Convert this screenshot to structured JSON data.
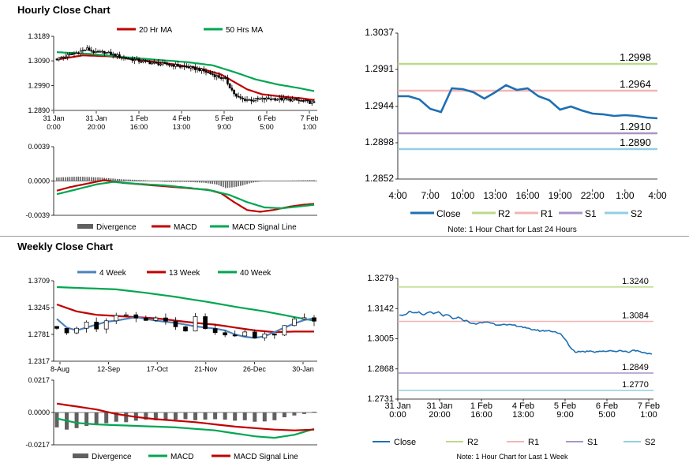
{
  "sections": {
    "hourly_title": "Hourly Close Chart",
    "weekly_title": "Weekly Close Chart"
  },
  "colors": {
    "close": "#1f6fb2",
    "r2": "#bcd98a",
    "r1": "#f2b4b4",
    "s1": "#a994c8",
    "s2": "#92cfe0",
    "ma_short": "#c00000",
    "ma_long": "#00a651",
    "ma_4wk": "#4f81bd",
    "divergence": "#606060",
    "candle": "#000000"
  },
  "chart_data": [
    {
      "id": "hourly_price",
      "type": "candlestick",
      "ylim": [
        1.289,
        1.3189
      ],
      "y_ticks": [
        "1.3189",
        "1.3090",
        "1.2990",
        "1.2890"
      ],
      "y_tick_values": [
        1.3189,
        1.309,
        1.299,
        1.289
      ],
      "x_ticks": [
        [
          "31 Jan",
          "0:00"
        ],
        [
          "31 Jan",
          "20:00"
        ],
        [
          "1 Feb",
          "16:00"
        ],
        [
          "4 Feb",
          "13:00"
        ],
        [
          "5 Feb",
          "9:00"
        ],
        [
          "6 Feb",
          "5:00"
        ],
        [
          "7 Feb",
          "1:00"
        ]
      ],
      "legend": [
        "20 Hr MA",
        "50 Hrs MA"
      ],
      "n": 120,
      "close": [
        [
          0,
          1.3098
        ],
        [
          10,
          1.3125
        ],
        [
          14,
          1.3138
        ],
        [
          18,
          1.3122
        ],
        [
          22,
          1.3125
        ],
        [
          30,
          1.3105
        ],
        [
          38,
          1.309
        ],
        [
          45,
          1.308
        ],
        [
          52,
          1.3075
        ],
        [
          60,
          1.3065
        ],
        [
          66,
          1.3055
        ],
        [
          72,
          1.3035
        ],
        [
          78,
          1.3015
        ],
        [
          80,
          1.2985
        ],
        [
          83,
          1.2945
        ],
        [
          86,
          1.2935
        ],
        [
          90,
          1.2932
        ],
        [
          95,
          1.2936
        ],
        [
          100,
          1.2937
        ],
        [
          105,
          1.2935
        ],
        [
          110,
          1.2932
        ],
        [
          115,
          1.2926
        ],
        [
          119,
          1.292
        ]
      ],
      "ma20": [
        [
          0,
          1.3095
        ],
        [
          12,
          1.3112
        ],
        [
          25,
          1.3108
        ],
        [
          40,
          1.3092
        ],
        [
          55,
          1.3075
        ],
        [
          68,
          1.3055
        ],
        [
          76,
          1.3035
        ],
        [
          82,
          1.3005
        ],
        [
          88,
          1.2975
        ],
        [
          95,
          1.2955
        ],
        [
          105,
          1.2945
        ],
        [
          112,
          1.294
        ],
        [
          119,
          1.2932
        ]
      ],
      "ma50": [
        [
          0,
          1.3125
        ],
        [
          15,
          1.3118
        ],
        [
          30,
          1.3106
        ],
        [
          45,
          1.3095
        ],
        [
          60,
          1.3085
        ],
        [
          72,
          1.3072
        ],
        [
          82,
          1.3045
        ],
        [
          92,
          1.3015
        ],
        [
          102,
          1.2995
        ],
        [
          112,
          1.298
        ],
        [
          119,
          1.2968
        ]
      ]
    },
    {
      "id": "hourly_macd",
      "type": "macd",
      "ylim": [
        -0.0039,
        0.0039
      ],
      "y_ticks": [
        "0.0039",
        "0.0000",
        "-0.0039"
      ],
      "y_tick_values": [
        0.0039,
        0.0,
        -0.0039
      ],
      "legend": [
        "Divergence",
        "MACD",
        "MACD Signal Line"
      ],
      "n": 120,
      "macd": [
        [
          0,
          -0.0011
        ],
        [
          6,
          -0.0007
        ],
        [
          12,
          -0.0004
        ],
        [
          18,
          -0.0001
        ],
        [
          22,
          0.0001
        ],
        [
          30,
          -0.0002
        ],
        [
          40,
          -0.0004
        ],
        [
          50,
          -0.0006
        ],
        [
          60,
          -0.0008
        ],
        [
          70,
          -0.001
        ],
        [
          76,
          -0.0014
        ],
        [
          82,
          -0.0024
        ],
        [
          88,
          -0.0033
        ],
        [
          94,
          -0.0035
        ],
        [
          100,
          -0.0033
        ],
        [
          108,
          -0.0029
        ],
        [
          114,
          -0.0027
        ],
        [
          119,
          -0.0026
        ]
      ],
      "signal": [
        [
          0,
          -0.0015
        ],
        [
          10,
          -0.0009
        ],
        [
          18,
          -0.0004
        ],
        [
          26,
          -0.0001
        ],
        [
          36,
          -0.0003
        ],
        [
          50,
          -0.0005
        ],
        [
          62,
          -0.0008
        ],
        [
          72,
          -0.0011
        ],
        [
          80,
          -0.0016
        ],
        [
          88,
          -0.0024
        ],
        [
          96,
          -0.003
        ],
        [
          104,
          -0.0031
        ],
        [
          112,
          -0.0029
        ],
        [
          119,
          -0.0027
        ]
      ],
      "divergence": [
        [
          0,
          0.0004
        ],
        [
          10,
          0.0005
        ],
        [
          20,
          0.0004
        ],
        [
          30,
          0.0002
        ],
        [
          40,
          0.0001
        ],
        [
          50,
          -0.0001
        ],
        [
          60,
          -0.0001
        ],
        [
          68,
          -0.0002
        ],
        [
          74,
          -0.0004
        ],
        [
          78,
          -0.0008
        ],
        [
          82,
          -0.0007
        ],
        [
          86,
          -0.0005
        ],
        [
          90,
          -0.0002
        ],
        [
          96,
          0.0
        ],
        [
          119,
          0.0001
        ]
      ]
    },
    {
      "id": "hourly_levels",
      "type": "line",
      "ylim": [
        1.2852,
        1.3037
      ],
      "y_ticks": [
        "1.3037",
        "1.2991",
        "1.2944",
        "1.2898",
        "1.2852"
      ],
      "y_tick_values": [
        1.3037,
        1.2991,
        1.2944,
        1.2898,
        1.2852
      ],
      "x_ticks": [
        "4:00",
        "7:00",
        "10:00",
        "13:00",
        "16:00",
        "19:00",
        "22:00",
        "1:00",
        "4:00"
      ],
      "legend": [
        "Close",
        "R2",
        "R1",
        "S1",
        "S2"
      ],
      "note": "Note: 1 Hour Chart for Last 24 Hours",
      "levels": {
        "R2": 1.2998,
        "R1": 1.2964,
        "S1": 1.291,
        "S2": 1.289
      },
      "level_labels": {
        "R2": "1.2998",
        "R1": "1.2964",
        "S1": "1.2910",
        "S2": "1.2890"
      },
      "close": [
        1.2957,
        1.2957,
        1.2953,
        1.2941,
        1.2937,
        1.2967,
        1.2966,
        1.2962,
        1.2954,
        1.2962,
        1.2971,
        1.2965,
        1.2967,
        1.2957,
        1.2952,
        1.294,
        1.2944,
        1.2939,
        1.2935,
        1.2934,
        1.2932,
        1.2933,
        1.2932,
        1.293,
        1.2929
      ]
    },
    {
      "id": "weekly_price",
      "type": "candlestick",
      "ylim": [
        1.2317,
        1.3709
      ],
      "y_ticks": [
        "1.3709",
        "1.3245",
        "1.2781",
        "1.2317"
      ],
      "y_tick_values": [
        1.3709,
        1.3245,
        1.2781,
        1.2317
      ],
      "x_ticks": [
        "8-Aug",
        "12-Sep",
        "17-Oct",
        "21-Nov",
        "26-Dec",
        "30-Jan"
      ],
      "legend": [
        "4 Week",
        "13 Week",
        "40 Week"
      ],
      "n": 27,
      "close": [
        [
          0,
          1.292
        ],
        [
          1,
          1.278
        ],
        [
          2,
          1.288
        ],
        [
          3,
          1.3
        ],
        [
          4,
          1.29
        ],
        [
          5,
          1.298
        ],
        [
          6,
          1.308
        ],
        [
          7,
          1.312
        ],
        [
          8,
          1.306
        ],
        [
          9,
          1.302
        ],
        [
          10,
          1.312
        ],
        [
          11,
          1.3
        ],
        [
          12,
          1.29
        ],
        [
          13,
          1.285
        ],
        [
          14,
          1.305
        ],
        [
          15,
          1.29
        ],
        [
          16,
          1.282
        ],
        [
          17,
          1.28
        ],
        [
          18,
          1.27
        ],
        [
          19,
          1.28
        ],
        [
          20,
          1.268
        ],
        [
          21,
          1.275
        ],
        [
          22,
          1.282
        ],
        [
          23,
          1.292
        ],
        [
          24,
          1.3
        ],
        [
          25,
          1.31
        ],
        [
          26,
          1.298
        ]
      ],
      "wk4": [
        [
          0,
          1.305
        ],
        [
          1,
          1.29
        ],
        [
          2,
          1.285
        ],
        [
          3,
          1.29
        ],
        [
          4,
          1.295
        ],
        [
          5,
          1.3
        ],
        [
          6,
          1.302
        ],
        [
          7,
          1.305
        ],
        [
          8,
          1.308
        ],
        [
          9,
          1.305
        ],
        [
          10,
          1.302
        ],
        [
          11,
          1.3
        ],
        [
          12,
          1.298
        ],
        [
          13,
          1.295
        ],
        [
          14,
          1.292
        ],
        [
          15,
          1.29
        ],
        [
          16,
          1.288
        ],
        [
          17,
          1.285
        ],
        [
          18,
          1.278
        ],
        [
          19,
          1.274
        ],
        [
          20,
          1.272
        ],
        [
          21,
          1.275
        ],
        [
          22,
          1.282
        ],
        [
          23,
          1.29
        ],
        [
          24,
          1.297
        ],
        [
          25,
          1.303
        ],
        [
          26,
          1.306
        ]
      ],
      "wk13": [
        [
          0,
          1.33
        ],
        [
          2,
          1.318
        ],
        [
          4,
          1.312
        ],
        [
          6,
          1.31
        ],
        [
          8,
          1.308
        ],
        [
          10,
          1.306
        ],
        [
          12,
          1.302
        ],
        [
          14,
          1.298
        ],
        [
          16,
          1.295
        ],
        [
          18,
          1.29
        ],
        [
          20,
          1.285
        ],
        [
          22,
          1.282
        ],
        [
          24,
          1.283
        ],
        [
          26,
          1.283
        ]
      ],
      "wk40": [
        [
          0,
          1.36
        ],
        [
          3,
          1.358
        ],
        [
          6,
          1.356
        ],
        [
          9,
          1.35
        ],
        [
          12,
          1.343
        ],
        [
          15,
          1.335
        ],
        [
          18,
          1.326
        ],
        [
          21,
          1.318
        ],
        [
          24,
          1.308
        ],
        [
          26,
          1.302
        ]
      ]
    },
    {
      "id": "weekly_macd",
      "type": "macd",
      "ylim": [
        -0.0217,
        0.0217
      ],
      "y_ticks": [
        "0.0217",
        "0.0000",
        "-0.0217"
      ],
      "y_tick_values": [
        0.0217,
        0.0,
        -0.0217
      ],
      "legend": [
        "Divergence",
        "MACD",
        "MACD Signal Line"
      ],
      "n": 27,
      "macd": [
        [
          0,
          -0.004
        ],
        [
          2,
          -0.007
        ],
        [
          4,
          -0.008
        ],
        [
          6,
          -0.0085
        ],
        [
          8,
          -0.009
        ],
        [
          10,
          -0.0095
        ],
        [
          12,
          -0.01
        ],
        [
          14,
          -0.011
        ],
        [
          16,
          -0.012
        ],
        [
          18,
          -0.014
        ],
        [
          20,
          -0.016
        ],
        [
          22,
          -0.017
        ],
        [
          24,
          -0.015
        ],
        [
          26,
          -0.011
        ]
      ],
      "signal": [
        [
          0,
          0.006
        ],
        [
          2,
          0.004
        ],
        [
          4,
          0.002
        ],
        [
          6,
          -0.001
        ],
        [
          8,
          -0.003
        ],
        [
          10,
          -0.0045
        ],
        [
          12,
          -0.0055
        ],
        [
          14,
          -0.0065
        ],
        [
          16,
          -0.008
        ],
        [
          18,
          -0.0095
        ],
        [
          20,
          -0.0105
        ],
        [
          22,
          -0.0115
        ],
        [
          24,
          -0.012
        ],
        [
          26,
          -0.0115
        ]
      ],
      "divergence": [
        -0.01,
        -0.0115,
        -0.0105,
        -0.009,
        -0.0078,
        -0.0072,
        -0.0062,
        -0.0065,
        -0.0055,
        -0.0048,
        -0.0052,
        -0.0055,
        -0.0048,
        -0.0045,
        -0.0052,
        -0.0048,
        -0.0045,
        -0.0048,
        -0.0055,
        -0.0052,
        -0.0062,
        -0.006,
        -0.0052,
        -0.0032,
        -0.002,
        -0.001,
        0.0005
      ]
    },
    {
      "id": "weekly_levels",
      "type": "line",
      "ylim": [
        1.2731,
        1.3279
      ],
      "y_ticks": [
        "1.3279",
        "1.3142",
        "1.3005",
        "1.2868",
        "1.2731"
      ],
      "y_tick_values": [
        1.3279,
        1.3142,
        1.3005,
        1.2868,
        1.2731
      ],
      "x_ticks": [
        [
          "31 Jan",
          "0:00"
        ],
        [
          "31 Jan",
          "20:00"
        ],
        [
          "1 Feb",
          "16:00"
        ],
        [
          "4 Feb",
          "13:00"
        ],
        [
          "5 Feb",
          "9:00"
        ],
        [
          "6 Feb",
          "5:00"
        ],
        [
          "7 Feb",
          "1:00"
        ]
      ],
      "legend": [
        "Close",
        "R2",
        "R1",
        "S1",
        "S2"
      ],
      "note": "Note: 1 Hour Chart for Last 1 Week",
      "levels": {
        "R2": 1.324,
        "R1": 1.3084,
        "S1": 1.2849,
        "S2": 1.277
      },
      "level_labels": {
        "R2": "1.3240",
        "R1": "1.3084",
        "S1": "1.2849",
        "S2": "1.2770"
      },
      "close": [
        [
          0,
          1.3115
        ],
        [
          3,
          1.3112
        ],
        [
          6,
          1.3128
        ],
        [
          9,
          1.312
        ],
        [
          12,
          1.3125
        ],
        [
          15,
          1.3112
        ],
        [
          18,
          1.3128
        ],
        [
          21,
          1.3118
        ],
        [
          24,
          1.3126
        ],
        [
          27,
          1.311
        ],
        [
          30,
          1.3112
        ],
        [
          33,
          1.3095
        ],
        [
          36,
          1.3102
        ],
        [
          39,
          1.309
        ],
        [
          42,
          1.3085
        ],
        [
          45,
          1.3072
        ],
        [
          48,
          1.3074
        ],
        [
          51,
          1.3078
        ],
        [
          54,
          1.3082
        ],
        [
          57,
          1.3075
        ],
        [
          60,
          1.3068
        ],
        [
          63,
          1.3071
        ],
        [
          66,
          1.3066
        ],
        [
          69,
          1.3068
        ],
        [
          72,
          1.3064
        ],
        [
          75,
          1.306
        ],
        [
          78,
          1.3052
        ],
        [
          81,
          1.3048
        ],
        [
          84,
          1.3045
        ],
        [
          87,
          1.304
        ],
        [
          90,
          1.3042
        ],
        [
          93,
          1.304
        ],
        [
          96,
          1.3036
        ],
        [
          99,
          1.3025
        ],
        [
          102,
          1.3
        ],
        [
          105,
          1.2965
        ],
        [
          108,
          1.2945
        ],
        [
          111,
          1.2948
        ],
        [
          114,
          1.2946
        ],
        [
          117,
          1.2951
        ],
        [
          120,
          1.2945
        ],
        [
          123,
          1.2949
        ],
        [
          126,
          1.2946
        ],
        [
          129,
          1.2952
        ],
        [
          132,
          1.2948
        ],
        [
          135,
          1.2951
        ],
        [
          138,
          1.2948
        ],
        [
          141,
          1.2945
        ],
        [
          144,
          1.2955
        ],
        [
          147,
          1.2946
        ],
        [
          150,
          1.2939
        ],
        [
          153,
          1.2938
        ],
        [
          155,
          1.2936
        ]
      ]
    }
  ]
}
